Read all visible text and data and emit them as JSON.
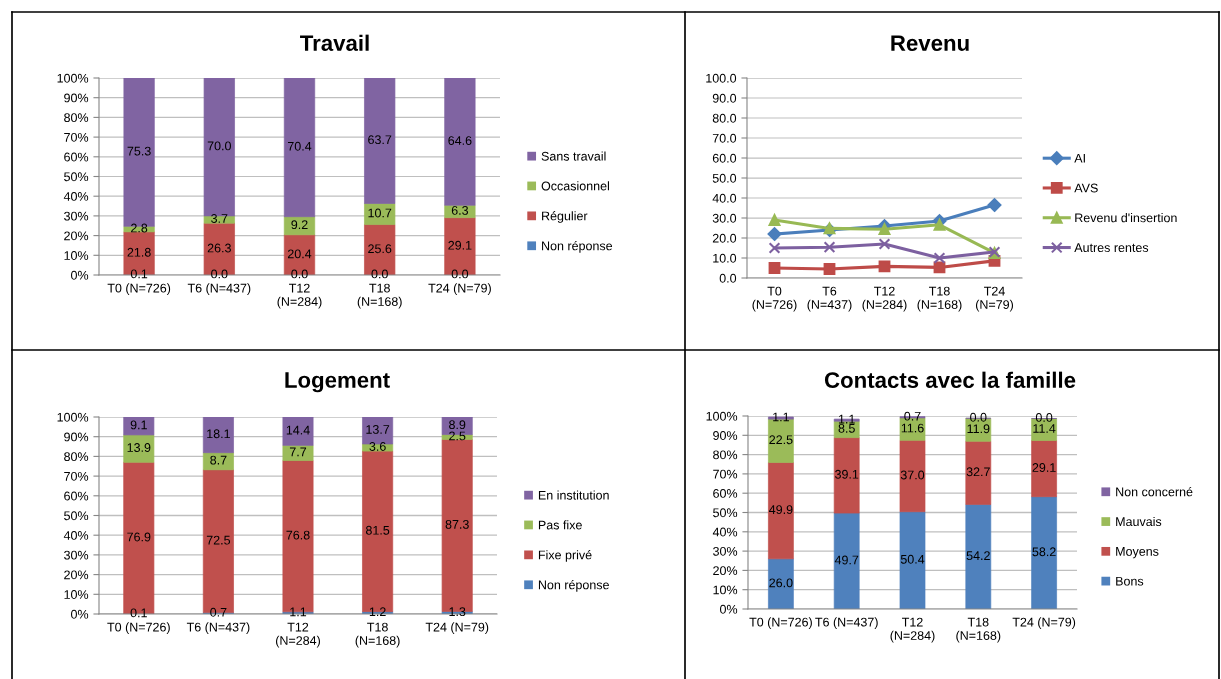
{
  "chart_data": [
    {
      "type": "bar",
      "title": "Travail",
      "stacked": true,
      "categories": [
        "T0 (N=726)",
        "T6 (N=437)",
        "T12\n(N=284)",
        "T18\n(N=168)",
        "T24 (N=79)"
      ],
      "ylim": [
        0,
        100
      ],
      "yticks": [
        {
          "value": 0,
          "label": "0%"
        },
        {
          "value": 10,
          "label": "10%"
        },
        {
          "value": 20,
          "label": "20%"
        },
        {
          "value": 30,
          "label": "30%"
        },
        {
          "value": 40,
          "label": "40%"
        },
        {
          "value": 50,
          "label": "50%"
        },
        {
          "value": 60,
          "label": "60%"
        },
        {
          "value": 70,
          "label": "70%"
        },
        {
          "value": 80,
          "label": "80%"
        },
        {
          "value": 90,
          "label": "90%"
        },
        {
          "value": 100,
          "label": "100%"
        }
      ],
      "grid": "y",
      "legend": "right",
      "series": [
        {
          "name": "Non réponse",
          "color": "#4f81bd",
          "values": [
            0.1,
            0.0,
            0.0,
            0.0,
            0.0
          ],
          "value_labels": [
            "0.1",
            "0.0",
            "0.0",
            "0.0",
            "0.0"
          ]
        },
        {
          "name": "Régulier",
          "color": "#c0504d",
          "values": [
            21.8,
            26.3,
            20.4,
            25.6,
            29.1
          ],
          "value_labels": [
            "21.8",
            "26.3",
            "20.4",
            "25.6",
            "29.1"
          ]
        },
        {
          "name": "Occasionnel",
          "color": "#9bbb59",
          "values": [
            2.8,
            3.7,
            9.2,
            10.7,
            6.3
          ],
          "value_labels": [
            "2.8",
            "3.7",
            "9.2",
            "10.7",
            "6.3"
          ]
        },
        {
          "name": "Sans travail",
          "color": "#8064a2",
          "values": [
            75.3,
            70.0,
            70.4,
            63.7,
            64.6
          ],
          "value_labels": [
            "75.3",
            "70.0",
            "70.4",
            "63.7",
            "64.6"
          ]
        }
      ]
    },
    {
      "type": "line",
      "title": "Revenu",
      "categories": [
        "T0\n(N=726)",
        "T6\n(N=437)",
        "T12\n(N=284)",
        "T18\n(N=168)",
        "T24\n(N=79)"
      ],
      "ylim": [
        0,
        100
      ],
      "yticks": [
        {
          "value": 0,
          "label": "0.0"
        },
        {
          "value": 10,
          "label": "10.0"
        },
        {
          "value": 20,
          "label": "20.0"
        },
        {
          "value": 30,
          "label": "30.0"
        },
        {
          "value": 40,
          "label": "40.0"
        },
        {
          "value": 50,
          "label": "50.0"
        },
        {
          "value": 60,
          "label": "60.0"
        },
        {
          "value": 70,
          "label": "70.0"
        },
        {
          "value": 80,
          "label": "80.0"
        },
        {
          "value": 90,
          "label": "90.0"
        },
        {
          "value": 100,
          "label": "100.0"
        }
      ],
      "grid": "y",
      "legend": "right",
      "line_style": "solid",
      "series": [
        {
          "name": "AI",
          "color": "#4a7ebb",
          "marker": "diamond",
          "values": [
            22,
            24,
            26,
            28.5,
            36.5
          ]
        },
        {
          "name": "AVS",
          "color": "#be4b48",
          "marker": "square",
          "values": [
            5,
            4.5,
            5.8,
            5.3,
            8.6
          ]
        },
        {
          "name": "Revenu d'insertion",
          "color": "#98b954",
          "marker": "triangle",
          "values": [
            29,
            24.8,
            24.4,
            26.6,
            12.5
          ]
        },
        {
          "name": "Autres rentes",
          "color": "#7d60a0",
          "marker": "cross",
          "values": [
            15,
            15.4,
            17,
            10,
            13
          ]
        }
      ]
    },
    {
      "type": "bar",
      "title": "Logement",
      "stacked": true,
      "categories": [
        "T0 (N=726)",
        "T6 (N=437)",
        "T12\n(N=284)",
        "T18\n(N=168)",
        "T24 (N=79)"
      ],
      "ylim": [
        0,
        100
      ],
      "yticks": [
        {
          "value": 0,
          "label": "0%"
        },
        {
          "value": 10,
          "label": "10%"
        },
        {
          "value": 20,
          "label": "20%"
        },
        {
          "value": 30,
          "label": "30%"
        },
        {
          "value": 40,
          "label": "40%"
        },
        {
          "value": 50,
          "label": "50%"
        },
        {
          "value": 60,
          "label": "60%"
        },
        {
          "value": 70,
          "label": "70%"
        },
        {
          "value": 80,
          "label": "80%"
        },
        {
          "value": 90,
          "label": "90%"
        },
        {
          "value": 100,
          "label": "100%"
        }
      ],
      "grid": "y",
      "legend": "right",
      "series": [
        {
          "name": "Non réponse",
          "color": "#4f81bd",
          "values": [
            0.1,
            0.7,
            1.1,
            1.2,
            1.3
          ],
          "value_labels": [
            "0.1",
            "0.7",
            "1.1",
            "1.2",
            "1.3"
          ]
        },
        {
          "name": "Fixe privé",
          "color": "#c0504d",
          "values": [
            76.9,
            72.5,
            76.8,
            81.5,
            87.3
          ],
          "value_labels": [
            "76.9",
            "72.5",
            "76.8",
            "81.5",
            "87.3"
          ]
        },
        {
          "name": "Pas fixe",
          "color": "#9bbb59",
          "values": [
            13.9,
            8.7,
            7.7,
            3.6,
            2.5
          ],
          "value_labels": [
            "13.9",
            "8.7",
            "7.7",
            "3.6",
            "2.5"
          ]
        },
        {
          "name": "En institution",
          "color": "#8064a2",
          "values": [
            9.1,
            18.1,
            14.4,
            13.7,
            8.9
          ],
          "value_labels": [
            "9.1",
            "18.1",
            "14.4",
            "13.7",
            "8.9"
          ]
        }
      ]
    },
    {
      "type": "bar",
      "title": "Contacts avec la famille",
      "stacked": true,
      "categories": [
        "T0 (N=726)",
        "T6 (N=437)",
        "T12\n(N=284)",
        "T18\n(N=168)",
        "T24 (N=79)"
      ],
      "ylim": [
        0,
        100
      ],
      "yticks": [
        {
          "value": 0,
          "label": "0%"
        },
        {
          "value": 10,
          "label": "10%"
        },
        {
          "value": 20,
          "label": "20%"
        },
        {
          "value": 30,
          "label": "30%"
        },
        {
          "value": 40,
          "label": "40%"
        },
        {
          "value": 50,
          "label": "50%"
        },
        {
          "value": 60,
          "label": "60%"
        },
        {
          "value": 70,
          "label": "70%"
        },
        {
          "value": 80,
          "label": "80%"
        },
        {
          "value": 90,
          "label": "90%"
        },
        {
          "value": 100,
          "label": "100%"
        }
      ],
      "grid": "y",
      "legend": "right",
      "series": [
        {
          "name": "Bons",
          "color": "#4f81bd",
          "values": [
            26.0,
            49.7,
            50.4,
            54.2,
            58.2
          ],
          "value_labels": [
            "26.0",
            "49.7",
            "50.4",
            "54.2",
            "58.2"
          ]
        },
        {
          "name": "Moyens",
          "color": "#c0504d",
          "values": [
            49.9,
            39.1,
            37.0,
            32.7,
            29.1
          ],
          "value_labels": [
            "49.9",
            "39.1",
            "37.0",
            "32.7",
            "29.1"
          ]
        },
        {
          "name": "Mauvais",
          "color": "#9bbb59",
          "values": [
            22.5,
            8.5,
            11.6,
            11.9,
            11.4
          ],
          "value_labels": [
            "22.5",
            "8.5",
            "11.6",
            "11.9",
            "11.4"
          ]
        },
        {
          "name": "Non concerné",
          "color": "#8064a2",
          "values": [
            1.1,
            1.1,
            0.7,
            0.0,
            0.0
          ],
          "value_labels": [
            "1.1",
            "1.1",
            "0.7",
            "0.0",
            "0.0"
          ]
        }
      ]
    }
  ]
}
